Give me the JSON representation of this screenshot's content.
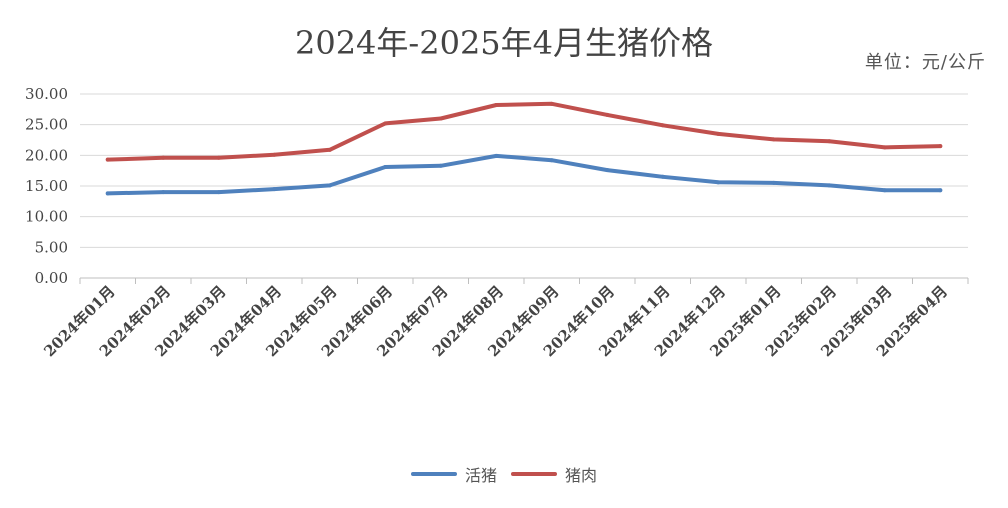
{
  "chart_data": {
    "type": "line",
    "title": "2024年-2025年4月生猪价格",
    "unit_label": "单位：元/公斤",
    "categories": [
      "2024年01月",
      "2024年02月",
      "2024年03月",
      "2024年04月",
      "2024年05月",
      "2024年06月",
      "2024年07月",
      "2024年08月",
      "2024年09月",
      "2024年10月",
      "2024年11月",
      "2024年12月",
      "2025年01月",
      "2025年02月",
      "2025年03月",
      "2025年04月"
    ],
    "series": [
      {
        "name": "活猪",
        "color": "#4f81bd",
        "values": [
          13.8,
          14.0,
          14.0,
          14.5,
          15.1,
          18.1,
          18.3,
          19.9,
          19.2,
          17.6,
          16.5,
          15.6,
          15.5,
          15.1,
          14.3,
          14.3
        ]
      },
      {
        "name": "猪肉",
        "color": "#c0504d",
        "values": [
          19.3,
          19.6,
          19.6,
          20.1,
          20.9,
          25.2,
          26.0,
          28.2,
          28.4,
          26.6,
          24.9,
          23.5,
          22.6,
          22.3,
          21.3,
          21.5
        ]
      }
    ],
    "y_ticks": [
      "0.00",
      "5.00",
      "10.00",
      "15.00",
      "20.00",
      "25.00",
      "30.00"
    ],
    "ylim": [
      0,
      30
    ],
    "grid": true,
    "legend_position": "bottom"
  }
}
